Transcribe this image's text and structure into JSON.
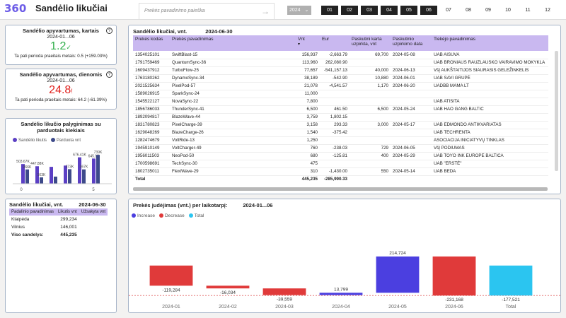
{
  "header": {
    "logo": "360",
    "title": "Sandėlio likučiai",
    "search_placeholder": "Prekės pavadinimo paieška",
    "year": "2024",
    "months": [
      {
        "label": "01",
        "selected": true
      },
      {
        "label": "02",
        "selected": true
      },
      {
        "label": "03",
        "selected": true
      },
      {
        "label": "04",
        "selected": true
      },
      {
        "label": "05",
        "selected": true
      },
      {
        "label": "06",
        "selected": true
      },
      {
        "label": "07",
        "selected": false
      },
      {
        "label": "08",
        "selected": false
      },
      {
        "label": "09",
        "selected": false
      },
      {
        "label": "10",
        "selected": false
      },
      {
        "label": "11",
        "selected": false
      },
      {
        "label": "12",
        "selected": false
      }
    ]
  },
  "kpi_monthly": {
    "title": "Sandėlio apyvartumas, kartais",
    "period": "2024-01...06",
    "value": "1.2",
    "indicator": "✓",
    "footer": "Ta pati perioda praeitais metais: 0.5 (+159.03%)",
    "color": "#2fae4a"
  },
  "kpi_days": {
    "title": "Sandėlio apyvartumas, dienomis",
    "period": "2024-01...06",
    "value": "24.8",
    "indicator": "!",
    "footer": "Ta pati perioda praeitais metais: 64.2 (-61.39%)",
    "color": "#e0201c"
  },
  "mini_chart": {
    "title": "Sandėlio likučio palyginimas su parduotais kiekiais",
    "legend": [
      {
        "name": "Sandėlio likutis",
        "color": "#5b3fc4"
      },
      {
        "name": "Parduota vnt",
        "color": "#3d4a8a"
      }
    ],
    "x_ticks": [
      "0",
      "5"
    ]
  },
  "chart_data": [
    {
      "type": "bar",
      "title": "Sandėlio likučio palyginimas su parduotais kiekiais",
      "categories": [
        "1",
        "2",
        "3",
        "4",
        "5",
        "6"
      ],
      "series": [
        {
          "name": "Sandėlio likutis",
          "values": [
            503670,
            447880,
            432700,
            464620,
            676410,
            645100
          ],
          "labels": [
            "503.67K",
            "447.88K",
            "",
            "",
            "676.41K",
            "645.1K"
          ]
        },
        {
          "name": "Parduota vnt",
          "values": [
            366000,
            163000,
            183000,
            373000,
            367000,
            739000
          ],
          "labels": [
            "366K",
            "163K",
            "",
            "373K",
            "367K",
            "739K"
          ]
        }
      ],
      "xticks": [
        "0",
        "5"
      ]
    },
    {
      "type": "bar",
      "subtype": "waterfall",
      "title": "Prekės judėjimas (vnt.) per laikotarpį:",
      "categories": [
        "2024-01",
        "2024-02",
        "2024-03",
        "2024-04",
        "2024-05",
        "2024-06",
        "Total"
      ],
      "values": [
        -119284,
        -16034,
        -39559,
        13799,
        214724,
        -231168,
        -177521
      ],
      "labels": [
        "-119,284",
        "-16,034",
        "-39,559",
        "13,799",
        "214,724",
        "-231,168",
        "-177,521"
      ],
      "legend": [
        "Increase",
        "Decrease",
        "Total"
      ],
      "colors": {
        "increase": "#4b3fe0",
        "decrease": "#e03a3a",
        "total": "#2bc5f0"
      }
    }
  ],
  "stock_table": {
    "title": "Sandėlio likučiai, vnt.",
    "date": "2024-06-30",
    "columns": [
      "Prekės kodas",
      "Prekės pavadinimas",
      "Vnt",
      "Eur",
      "Paskutini karta uzpirkta, vnt",
      "Paskutinio uzpirkimo data",
      "Tiekėjo pavadinimas"
    ],
    "rows": [
      [
        "1354025101",
        "SwiftBlast-15",
        "156,937",
        "-2,663.79",
        "69,700",
        "2024-05-08",
        "UAB AISUVA"
      ],
      [
        "1791759469",
        "QuantumSync-36",
        "113,960",
        "262,080.90",
        "",
        "",
        "UAB BRONIAUS RAUZLAUSKO VAIRAVIMO MOKYKLA"
      ],
      [
        "1609437912",
        "TurboFlow-25",
        "77,657",
        "-541,157.13",
        "40,000",
        "2024-06-13",
        "VšĮ AUKŠTAITIJOS SIAURASIS GELEŽINKELIS"
      ],
      [
        "1763180262",
        "DynamoSync-34",
        "38,189",
        "-542.90",
        "10,880",
        "2024-06-01",
        "UAB SAVI GRUPĖ"
      ],
      [
        "2021525634",
        "PixelPod-57",
        "21,078",
        "-4,541.57",
        "1,170",
        "2024-06-20",
        "UADBB MAMA LT"
      ],
      [
        "1589026915",
        "SparkSync-24",
        "11,000",
        "",
        "",
        "",
        ""
      ],
      [
        "1545522127",
        "NovaSync-22",
        "7,800",
        "",
        "",
        "",
        "UAB ATISITA"
      ],
      [
        "1856786033",
        "ThunderSync-41",
        "6,500",
        "461.50",
        "6,500",
        "2024-05-24",
        "UAB HAO GANG BALTIC"
      ],
      [
        "1892094817",
        "BlazeWave-44",
        "3,759",
        "1,802.15",
        "",
        "",
        ""
      ],
      [
        "1831780823",
        "PixelCharge-39",
        "3,158",
        "293.33",
        "3,000",
        "2024-05-17",
        "UAB EDMONDO ANTIKVARIATAS"
      ],
      [
        "1629048269",
        "BlazeCharge-26",
        "1,540",
        "-375.42",
        "",
        "",
        "UAB TECHRENTA"
      ],
      [
        "1282474679",
        "VoltRide-13",
        "1,250",
        "",
        "",
        "",
        "ASOCIACIJA INICIATYVŲ TINKLAS"
      ],
      [
        "1945910149",
        "VoltCharger-49",
        "760",
        "-238.03",
        "729",
        "2024-06-05",
        "VšĮ PODIUMAS"
      ],
      [
        "1956011503",
        "NeoPod-50",
        "680",
        "-125.81",
        "400",
        "2024-05-29",
        "UAB TOYO INK EUROPE BALTICA"
      ],
      [
        "1700598691",
        "TechSync-30",
        "475",
        "",
        "",
        "",
        "UAB \"ERSTĖ\""
      ],
      [
        "1802735011",
        "FlexiWave-29",
        "310",
        "-1,430.00",
        "550",
        "2024-05-14",
        "UAB BEDA"
      ]
    ],
    "total": {
      "label": "Total",
      "vnt": "445,235",
      "eur": "-285,990.33"
    }
  },
  "warehouse_table": {
    "title": "Sandėlio likučiai, vnt.",
    "date": "2024-06-30",
    "columns": [
      "Padalinio pavadinimas",
      "Likutis vnt",
      "Užsakyta vnt"
    ],
    "rows": [
      [
        "Klaipėda",
        "299,234",
        ""
      ],
      [
        "Vilnius",
        "146,001",
        ""
      ]
    ],
    "total": {
      "label": "Viso sandelys:",
      "value": "445,235"
    }
  },
  "waterfall": {
    "title": "Prekės judėjimas (vnt.) per laikotarpį:",
    "period": "2024-01...06",
    "legend": [
      {
        "name": "Increase",
        "color": "#4b3fe0"
      },
      {
        "name": "Decrease",
        "color": "#e03a3a"
      },
      {
        "name": "Total",
        "color": "#2bc5f0"
      }
    ]
  }
}
